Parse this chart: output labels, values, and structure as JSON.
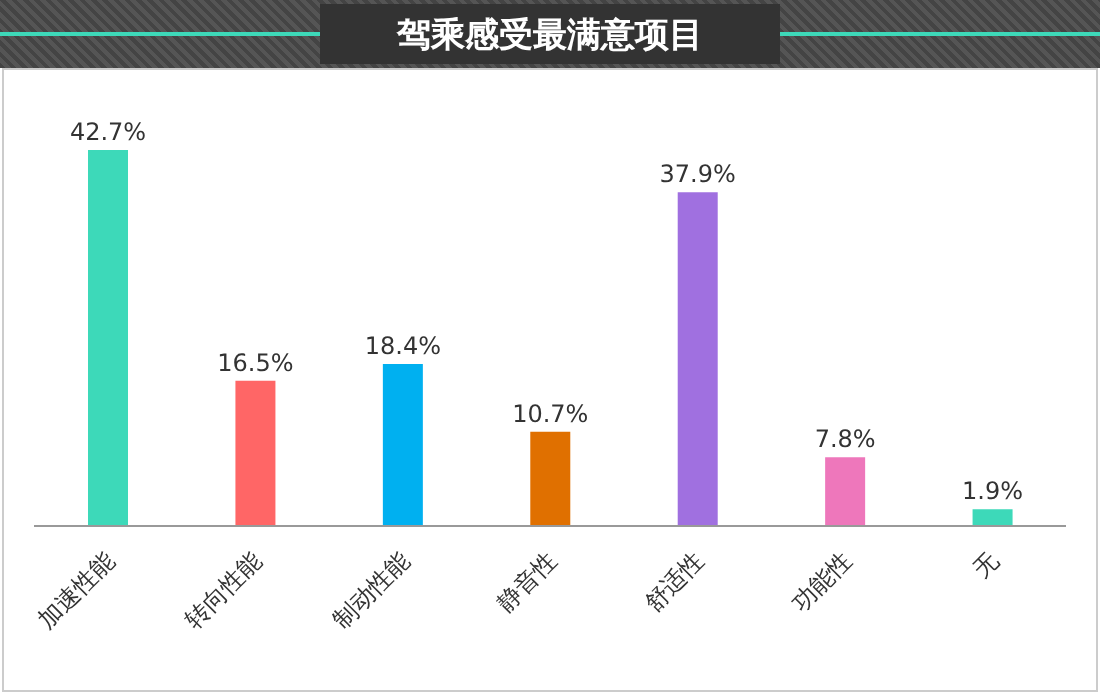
{
  "chart_data": {
    "type": "bar",
    "title": "驾乘感受最满意项目",
    "categories": [
      "加速性能",
      "转向性能",
      "制动性能",
      "静音性",
      "舒适性",
      "功能性",
      "无"
    ],
    "values": [
      42.7,
      16.5,
      18.4,
      10.7,
      37.9,
      7.8,
      1.9
    ],
    "colors": [
      "#3dd9b9",
      "#ff6666",
      "#00b0f0",
      "#e07000",
      "#a070e0",
      "#ee77bb",
      "#3dd9b9"
    ],
    "value_labels": [
      "42.7%",
      "16.5%",
      "18.4%",
      "10.7%",
      "37.9%",
      "7.8%",
      "1.9%"
    ],
    "grid": false,
    "legend": false
  }
}
